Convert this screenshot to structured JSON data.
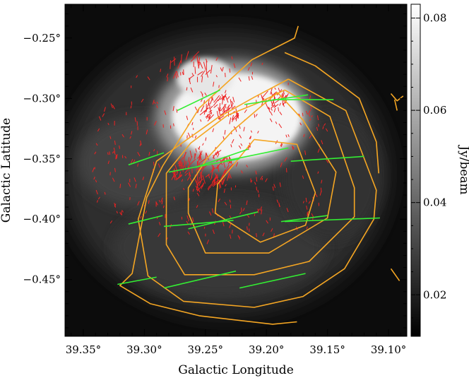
{
  "chart_data": {
    "type": "image",
    "xlabel": "Galactic Longitude",
    "ylabel": "Galactic Latitude",
    "x_unit": "deg",
    "y_unit": "deg",
    "xlim": [
      39.365,
      39.085
    ],
    "ylim": [
      -0.497,
      -0.222
    ],
    "x_ticks": [
      {
        "value": 39.35,
        "label": "39.35°"
      },
      {
        "value": 39.3,
        "label": "39.30°"
      },
      {
        "value": 39.25,
        "label": "39.25°"
      },
      {
        "value": 39.2,
        "label": "39.20°"
      },
      {
        "value": 39.15,
        "label": "39.15°"
      },
      {
        "value": 39.1,
        "label": "39.10°"
      }
    ],
    "y_ticks": [
      {
        "value": -0.25,
        "label": "−0.25°"
      },
      {
        "value": -0.3,
        "label": "−0.30°"
      },
      {
        "value": -0.35,
        "label": "−0.35°"
      },
      {
        "value": -0.4,
        "label": "−0.40°"
      },
      {
        "value": -0.45,
        "label": "−0.45°"
      }
    ],
    "colorbar": {
      "label": "Jy/beam",
      "range": [
        0.011,
        0.083
      ],
      "ticks": [
        {
          "value": 0.02,
          "label": "0.02"
        },
        {
          "value": 0.04,
          "label": "0.04"
        },
        {
          "value": 0.06,
          "label": "0.06"
        },
        {
          "value": 0.08,
          "label": "0.08"
        }
      ],
      "colormap": "grayscale (black to white)"
    },
    "colors": {
      "background": "#0c0c0c",
      "contours": "#f5a623",
      "green_vectors": "#33ee33",
      "red_vectors": "#ee2222"
    },
    "contours": [
      [
        [
          39.174,
          -0.24
        ],
        [
          39.177,
          -0.25
        ],
        [
          39.212,
          -0.268
        ],
        [
          39.255,
          -0.308
        ],
        [
          39.285,
          -0.356
        ],
        [
          39.298,
          -0.382
        ],
        [
          39.31,
          -0.445
        ],
        [
          39.32,
          -0.455
        ],
        [
          39.295,
          -0.47
        ],
        [
          39.255,
          -0.48
        ],
        [
          39.195,
          -0.487
        ],
        [
          39.175,
          -0.485
        ]
      ],
      [
        [
          39.185,
          -0.262
        ],
        [
          39.16,
          -0.273
        ],
        [
          39.124,
          -0.3
        ],
        [
          39.11,
          -0.336
        ],
        [
          39.108,
          -0.362
        ]
      ],
      [
        [
          39.182,
          -0.284
        ],
        [
          39.135,
          -0.31
        ],
        [
          39.11,
          -0.376
        ],
        [
          39.112,
          -0.4
        ],
        [
          39.136,
          -0.441
        ],
        [
          39.17,
          -0.464
        ],
        [
          39.21,
          -0.473
        ],
        [
          39.268,
          -0.468
        ],
        [
          39.297,
          -0.447
        ],
        [
          39.305,
          -0.4
        ],
        [
          39.29,
          -0.352
        ],
        [
          39.24,
          -0.316
        ],
        [
          39.21,
          -0.299
        ],
        [
          39.182,
          -0.284
        ]
      ],
      [
        [
          39.185,
          -0.293
        ],
        [
          39.148,
          -0.315
        ],
        [
          39.128,
          -0.374
        ],
        [
          39.128,
          -0.398
        ],
        [
          39.165,
          -0.435
        ],
        [
          39.21,
          -0.446
        ],
        [
          39.267,
          -0.446
        ],
        [
          39.282,
          -0.421
        ],
        [
          39.282,
          -0.362
        ],
        [
          39.262,
          -0.337
        ],
        [
          39.232,
          -0.314
        ],
        [
          39.205,
          -0.303
        ],
        [
          39.185,
          -0.293
        ]
      ],
      [
        [
          39.191,
          -0.295
        ],
        [
          39.17,
          -0.318
        ],
        [
          39.143,
          -0.361
        ],
        [
          39.15,
          -0.399
        ],
        [
          39.198,
          -0.428
        ],
        [
          39.25,
          -0.428
        ],
        [
          39.264,
          -0.395
        ],
        [
          39.264,
          -0.374
        ],
        [
          39.249,
          -0.35
        ],
        [
          39.228,
          -0.327
        ],
        [
          39.191,
          -0.295
        ]
      ],
      [
        [
          39.21,
          -0.334
        ],
        [
          39.175,
          -0.338
        ],
        [
          39.16,
          -0.378
        ],
        [
          39.168,
          -0.405
        ],
        [
          39.205,
          -0.419
        ],
        [
          39.242,
          -0.395
        ],
        [
          39.24,
          -0.371
        ],
        [
          39.21,
          -0.334
        ]
      ],
      [
        [
          39.098,
          -0.296
        ],
        [
          39.093,
          -0.302
        ],
        [
          39.088,
          -0.298
        ]
      ],
      [
        [
          39.095,
          -0.301
        ],
        [
          39.093,
          -0.31
        ]
      ],
      [
        [
          39.098,
          -0.441
        ],
        [
          39.091,
          -0.451
        ]
      ]
    ],
    "green_vectors": [
      [
        [
          39.273,
          -0.31
        ],
        [
          39.238,
          -0.293
        ]
      ],
      [
        [
          39.218,
          -0.305
        ],
        [
          39.166,
          -0.297
        ]
      ],
      [
        [
          39.195,
          -0.301
        ],
        [
          39.145,
          -0.301
        ]
      ],
      [
        [
          39.313,
          -0.355
        ],
        [
          39.284,
          -0.345
        ]
      ],
      [
        [
          39.28,
          -0.361
        ],
        [
          39.222,
          -0.35
        ]
      ],
      [
        [
          39.258,
          -0.357
        ],
        [
          39.215,
          -0.342
        ]
      ],
      [
        [
          39.235,
          -0.352
        ],
        [
          39.182,
          -0.341
        ]
      ],
      [
        [
          39.18,
          -0.352
        ],
        [
          39.12,
          -0.348
        ]
      ],
      [
        [
          39.313,
          -0.404
        ],
        [
          39.285,
          -0.397
        ]
      ],
      [
        [
          39.284,
          -0.406
        ],
        [
          39.227,
          -0.401
        ]
      ],
      [
        [
          39.264,
          -0.408
        ],
        [
          39.207,
          -0.394
        ]
      ],
      [
        [
          39.188,
          -0.402
        ],
        [
          39.15,
          -0.397
        ]
      ],
      [
        [
          39.185,
          -0.402
        ],
        [
          39.107,
          -0.399
        ]
      ],
      [
        [
          39.322,
          -0.454
        ],
        [
          39.29,
          -0.448
        ]
      ],
      [
        [
          39.284,
          -0.457
        ],
        [
          39.225,
          -0.443
        ]
      ],
      [
        [
          39.222,
          -0.457
        ],
        [
          39.168,
          -0.445
        ]
      ]
    ]
  }
}
